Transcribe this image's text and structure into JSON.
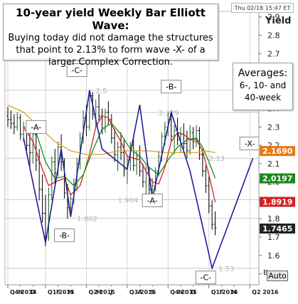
{
  "header": {
    "title": "10-year yield Weekly Bar Elliott Wave:",
    "subtitle": "Buying today did not damage the structures that point to 2.13% to form wave -X- of a larger Complex Correction.",
    "date_stamp": "Thu 02/18 15:47 ET"
  },
  "averages_box": {
    "title": "Averages:",
    "subtitle": "6-, 10- and 40-week"
  },
  "controls": {
    "auto_label": "Auto",
    "scale_marker": "B"
  },
  "chart_data": {
    "type": "bar",
    "ylabel": "Yield",
    "ylim": [
      1.44,
      2.93
    ],
    "y_ticks": [
      1.5,
      1.6,
      1.7,
      1.8,
      1.9,
      2.0,
      2.1,
      2.2,
      2.3,
      2.4,
      2.5,
      2.6,
      2.7,
      2.8,
      2.9
    ],
    "x_range": [
      0,
      79
    ],
    "x_periods": [
      {
        "label": "Q4 2014",
        "x": 0
      },
      {
        "label": "Q1 2015",
        "x": 12
      },
      {
        "label": "Q2 2015",
        "x": 25
      },
      {
        "label": "Q3 2015",
        "x": 38
      },
      {
        "label": "Q4 2015",
        "x": 51
      },
      {
        "label": "Q1 2016",
        "x": 64
      },
      {
        "label": "Q2 2016",
        "x": 77
      }
    ],
    "month_labels": [
      {
        "label": "N",
        "x": 4
      },
      {
        "label": "D",
        "x": 8
      },
      {
        "label": "F",
        "x": 16
      },
      {
        "label": "M",
        "x": 20
      },
      {
        "label": "M",
        "x": 29
      },
      {
        "label": "J",
        "x": 33
      },
      {
        "label": "A",
        "x": 42
      },
      {
        "label": "S",
        "x": 46
      },
      {
        "label": "N",
        "x": 55
      },
      {
        "label": "D",
        "x": 59
      },
      {
        "label": "F",
        "x": 68
      },
      {
        "label": "M",
        "x": 72
      }
    ],
    "price_bars": [
      {
        "x": 0,
        "o": 2.36,
        "h": 2.41,
        "l": 2.3,
        "c": 2.34
      },
      {
        "x": 1,
        "o": 2.34,
        "h": 2.39,
        "l": 2.29,
        "c": 2.32
      },
      {
        "x": 2,
        "o": 2.32,
        "h": 2.37,
        "l": 2.26,
        "c": 2.3
      },
      {
        "x": 3,
        "o": 2.3,
        "h": 2.38,
        "l": 2.28,
        "c": 2.35
      },
      {
        "x": 4,
        "o": 2.35,
        "h": 2.37,
        "l": 2.23,
        "c": 2.26
      },
      {
        "x": 5,
        "o": 2.26,
        "h": 2.33,
        "l": 2.22,
        "c": 2.3
      },
      {
        "x": 6,
        "o": 2.3,
        "h": 2.32,
        "l": 2.17,
        "c": 2.2
      },
      {
        "x": 7,
        "o": 2.2,
        "h": 2.3,
        "l": 2.08,
        "c": 2.16
      },
      {
        "x": 8,
        "o": 2.16,
        "h": 2.28,
        "l": 2.1,
        "c": 2.26
      },
      {
        "x": 9,
        "o": 2.26,
        "h": 2.3,
        "l": 2.06,
        "c": 2.12
      },
      {
        "x": 10,
        "o": 2.12,
        "h": 2.18,
        "l": 1.9,
        "c": 1.96
      },
      {
        "x": 11,
        "o": 1.96,
        "h": 2.04,
        "l": 1.78,
        "c": 1.83
      },
      {
        "x": 12,
        "o": 1.83,
        "h": 1.93,
        "l": 1.65,
        "c": 1.7
      },
      {
        "x": 13,
        "o": 1.7,
        "h": 1.97,
        "l": 1.68,
        "c": 1.93
      },
      {
        "x": 14,
        "o": 1.93,
        "h": 2.14,
        "l": 1.9,
        "c": 2.11
      },
      {
        "x": 15,
        "o": 2.11,
        "h": 2.18,
        "l": 1.99,
        "c": 2.05
      },
      {
        "x": 16,
        "o": 2.05,
        "h": 2.22,
        "l": 2.03,
        "c": 2.19
      },
      {
        "x": 17,
        "o": 2.19,
        "h": 2.26,
        "l": 2.06,
        "c": 2.11
      },
      {
        "x": 18,
        "o": 2.11,
        "h": 2.13,
        "l": 1.91,
        "c": 1.94
      },
      {
        "x": 19,
        "o": 1.94,
        "h": 1.99,
        "l": 1.8,
        "c": 1.86
      },
      {
        "x": 20,
        "o": 1.86,
        "h": 1.94,
        "l": 1.83,
        "c": 1.91
      },
      {
        "x": 21,
        "o": 1.91,
        "h": 2.02,
        "l": 1.88,
        "c": 1.99
      },
      {
        "x": 22,
        "o": 1.99,
        "h": 2.13,
        "l": 1.95,
        "c": 2.1
      },
      {
        "x": 23,
        "o": 2.1,
        "h": 2.27,
        "l": 2.07,
        "c": 2.24
      },
      {
        "x": 24,
        "o": 2.24,
        "h": 2.39,
        "l": 2.21,
        "c": 2.35
      },
      {
        "x": 25,
        "o": 2.35,
        "h": 2.42,
        "l": 2.25,
        "c": 2.3
      },
      {
        "x": 26,
        "o": 2.3,
        "h": 2.5,
        "l": 2.28,
        "c": 2.47
      },
      {
        "x": 27,
        "o": 2.47,
        "h": 2.49,
        "l": 2.34,
        "c": 2.37
      },
      {
        "x": 28,
        "o": 2.37,
        "h": 2.45,
        "l": 2.3,
        "c": 2.41
      },
      {
        "x": 29,
        "o": 2.41,
        "h": 2.48,
        "l": 2.33,
        "c": 2.36
      },
      {
        "x": 30,
        "o": 2.36,
        "h": 2.4,
        "l": 2.26,
        "c": 2.29
      },
      {
        "x": 31,
        "o": 2.29,
        "h": 2.4,
        "l": 2.27,
        "c": 2.38
      },
      {
        "x": 32,
        "o": 2.38,
        "h": 2.44,
        "l": 2.31,
        "c": 2.34
      },
      {
        "x": 33,
        "o": 2.34,
        "h": 2.37,
        "l": 2.21,
        "c": 2.24
      },
      {
        "x": 34,
        "o": 2.24,
        "h": 2.29,
        "l": 2.11,
        "c": 2.15
      },
      {
        "x": 35,
        "o": 2.15,
        "h": 2.22,
        "l": 2.06,
        "c": 2.19
      },
      {
        "x": 36,
        "o": 2.19,
        "h": 2.27,
        "l": 2.12,
        "c": 2.16
      },
      {
        "x": 37,
        "o": 2.16,
        "h": 2.23,
        "l": 2.03,
        "c": 2.07
      },
      {
        "x": 38,
        "o": 2.07,
        "h": 2.15,
        "l": 1.99,
        "c": 2.12
      },
      {
        "x": 39,
        "o": 2.12,
        "h": 2.22,
        "l": 2.06,
        "c": 2.2
      },
      {
        "x": 40,
        "o": 2.2,
        "h": 2.25,
        "l": 2.06,
        "c": 2.09
      },
      {
        "x": 41,
        "o": 2.09,
        "h": 2.17,
        "l": 2.04,
        "c": 2.14
      },
      {
        "x": 42,
        "o": 2.14,
        "h": 2.2,
        "l": 2.03,
        "c": 2.06
      },
      {
        "x": 43,
        "o": 2.06,
        "h": 2.1,
        "l": 1.97,
        "c": 2.0
      },
      {
        "x": 44,
        "o": 2.0,
        "h": 2.09,
        "l": 1.92,
        "c": 2.05
      },
      {
        "x": 45,
        "o": 2.05,
        "h": 2.08,
        "l": 1.9,
        "c": 1.96
      },
      {
        "x": 46,
        "o": 1.96,
        "h": 2.02,
        "l": 1.9,
        "c": 1.98
      },
      {
        "x": 47,
        "o": 1.98,
        "h": 2.08,
        "l": 1.95,
        "c": 2.06
      },
      {
        "x": 48,
        "o": 2.06,
        "h": 2.17,
        "l": 2.03,
        "c": 2.14
      },
      {
        "x": 49,
        "o": 2.14,
        "h": 2.27,
        "l": 2.11,
        "c": 2.25
      },
      {
        "x": 50,
        "o": 2.25,
        "h": 2.33,
        "l": 2.2,
        "c": 2.3
      },
      {
        "x": 51,
        "o": 2.3,
        "h": 2.38,
        "l": 2.25,
        "c": 2.34
      },
      {
        "x": 52,
        "o": 2.34,
        "h": 2.37,
        "l": 2.22,
        "c": 2.25
      },
      {
        "x": 53,
        "o": 2.25,
        "h": 2.31,
        "l": 2.15,
        "c": 2.28
      },
      {
        "x": 54,
        "o": 2.28,
        "h": 2.35,
        "l": 2.2,
        "c": 2.23
      },
      {
        "x": 55,
        "o": 2.23,
        "h": 2.3,
        "l": 2.16,
        "c": 2.26
      },
      {
        "x": 56,
        "o": 2.26,
        "h": 2.32,
        "l": 2.18,
        "c": 2.21
      },
      {
        "x": 57,
        "o": 2.21,
        "h": 2.28,
        "l": 2.13,
        "c": 2.17
      },
      {
        "x": 58,
        "o": 2.17,
        "h": 2.31,
        "l": 2.15,
        "c": 2.27
      },
      {
        "x": 59,
        "o": 2.27,
        "h": 2.3,
        "l": 2.18,
        "c": 2.22
      },
      {
        "x": 60,
        "o": 2.22,
        "h": 2.31,
        "l": 2.19,
        "c": 2.28
      },
      {
        "x": 61,
        "o": 2.28,
        "h": 2.3,
        "l": 2.12,
        "c": 2.15
      },
      {
        "x": 62,
        "o": 2.15,
        "h": 2.18,
        "l": 2.03,
        "c": 2.06
      },
      {
        "x": 63,
        "o": 2.06,
        "h": 2.09,
        "l": 1.94,
        "c": 1.98
      },
      {
        "x": 64,
        "o": 1.98,
        "h": 2.03,
        "l": 1.83,
        "c": 1.87
      },
      {
        "x": 65,
        "o": 1.87,
        "h": 1.9,
        "l": 1.74,
        "c": 1.77
      },
      {
        "x": 66,
        "o": 1.77,
        "h": 1.84,
        "l": 1.71,
        "c": 1.75
      }
    ],
    "series": [
      {
        "name": "6-week",
        "color": "#d42020",
        "x": [
          5,
          8,
          11,
          13,
          15,
          18,
          20,
          23,
          26,
          28,
          30,
          32,
          34,
          36,
          38,
          40,
          42,
          44,
          46,
          48,
          50,
          52,
          54,
          56,
          58,
          60,
          62,
          64,
          66
        ],
        "y": [
          2.3,
          2.22,
          2.07,
          1.98,
          2.0,
          2.02,
          1.93,
          1.98,
          2.15,
          2.3,
          2.36,
          2.35,
          2.28,
          2.22,
          2.14,
          2.13,
          2.12,
          2.06,
          2.0,
          1.99,
          2.08,
          2.22,
          2.27,
          2.26,
          2.23,
          2.23,
          2.17,
          2.04,
          1.89
        ]
      },
      {
        "name": "10-week",
        "color": "#1a8a1a",
        "x": [
          9,
          12,
          15,
          18,
          21,
          24,
          27,
          30,
          33,
          36,
          39,
          42,
          45,
          48,
          51,
          54,
          57,
          60,
          62,
          64,
          66
        ],
        "y": [
          2.27,
          2.11,
          2.02,
          2.03,
          1.98,
          2.04,
          2.17,
          2.29,
          2.32,
          2.26,
          2.18,
          2.14,
          2.08,
          2.04,
          2.12,
          2.19,
          2.23,
          2.24,
          2.19,
          2.11,
          2.02
        ]
      },
      {
        "name": "40-week",
        "color": "#e0a020",
        "x": [
          0,
          5,
          10,
          15,
          20,
          25,
          30,
          35,
          40,
          45,
          50,
          55,
          60,
          63,
          66
        ],
        "y": [
          2.42,
          2.38,
          2.3,
          2.22,
          2.17,
          2.15,
          2.15,
          2.17,
          2.17,
          2.17,
          2.16,
          2.16,
          2.16,
          2.17,
          2.16
        ]
      }
    ],
    "wave_path": {
      "color": "#1f1f9a",
      "points": [
        [
          5,
          2.24
        ],
        [
          12,
          1.67
        ],
        [
          17,
          2.18
        ],
        [
          20,
          1.81
        ],
        [
          26,
          2.5
        ],
        [
          30,
          2.18
        ],
        [
          38,
          2.07
        ],
        [
          42,
          2.42
        ],
        [
          46,
          1.91
        ],
        [
          52,
          2.38
        ],
        [
          58,
          2.06
        ],
        [
          65,
          1.53
        ],
        [
          78,
          2.13
        ]
      ]
    },
    "reference_lines": [
      {
        "y": 2.5,
        "label": "2.5",
        "x_label": 28
      },
      {
        "y": 2.379,
        "label": "2.379",
        "x_label": 48
      },
      {
        "y": 2.13,
        "label": "2.13",
        "x_label": 64
      },
      {
        "y": 1.904,
        "label": "1.904",
        "x_label": 35
      },
      {
        "y": 1.802,
        "label": "1.802",
        "x_label": 22
      },
      {
        "y": 1.53,
        "label": "1.53",
        "x_label": 67
      }
    ],
    "wave_labels": [
      {
        "text": "-A-",
        "x": 9,
        "y": 2.3
      },
      {
        "text": "-B-",
        "x": 18,
        "y": 1.71
      },
      {
        "text": "-C-",
        "x": 22,
        "y": 2.61
      },
      {
        "text": "-A-",
        "x": 46,
        "y": 1.9
      },
      {
        "text": "-B-",
        "x": 52,
        "y": 2.52
      },
      {
        "text": "-C-",
        "x": 63,
        "y": 1.48
      },
      {
        "text": "-X-",
        "x": 77,
        "y": 2.21
      }
    ],
    "price_tags": [
      {
        "value": "2.1690",
        "y": 2.169,
        "bg": "#e87a10",
        "fg": "#ffffff"
      },
      {
        "value": "2.0197",
        "y": 2.0197,
        "bg": "#1a8a1a",
        "fg": "#ffffff"
      },
      {
        "value": "1.8919",
        "y": 1.8919,
        "bg": "#d42020",
        "fg": "#ffffff"
      },
      {
        "value": "1.7465",
        "y": 1.7465,
        "bg": "#222222",
        "fg": "#ffffff"
      }
    ]
  }
}
